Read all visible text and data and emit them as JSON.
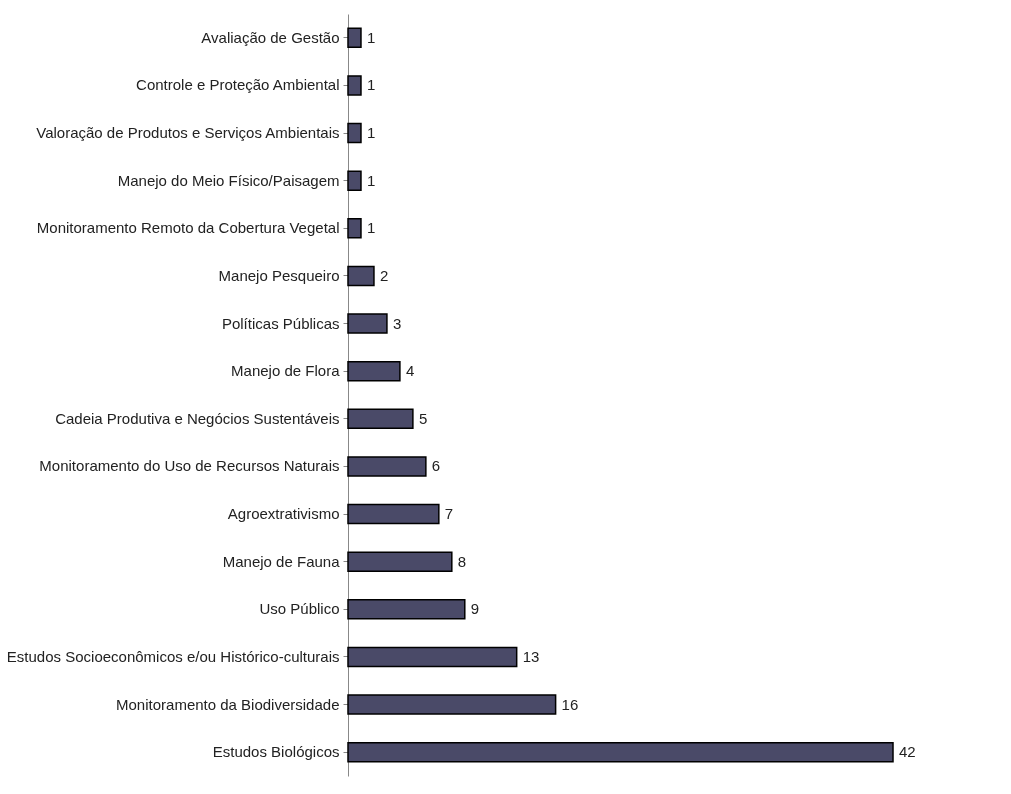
{
  "chart_data": {
    "type": "bar",
    "orientation": "horizontal",
    "categories": [
      "Avaliação de Gestão",
      "Controle e Proteção Ambiental",
      "Valoração de Produtos e Serviços Ambientais",
      "Manejo do Meio Físico/Paisagem",
      "Monitoramento Remoto da Cobertura Vegetal",
      "Manejo Pesqueiro",
      "Políticas Públicas",
      "Manejo de Flora",
      "Cadeia Produtiva e Negócios Sustentáveis",
      "Monitoramento do Uso de Recursos Naturais",
      "Agroextrativismo",
      "Manejo de Fauna",
      "Uso Público",
      "Estudos Socioeconômicos e/ou Histórico-culturais",
      "Monitoramento da Biodiversidade",
      "Estudos Biológicos"
    ],
    "values": [
      1,
      1,
      1,
      1,
      1,
      2,
      3,
      4,
      5,
      6,
      7,
      8,
      9,
      13,
      16,
      42
    ],
    "color": "#4a4a68",
    "data_labels": true
  }
}
